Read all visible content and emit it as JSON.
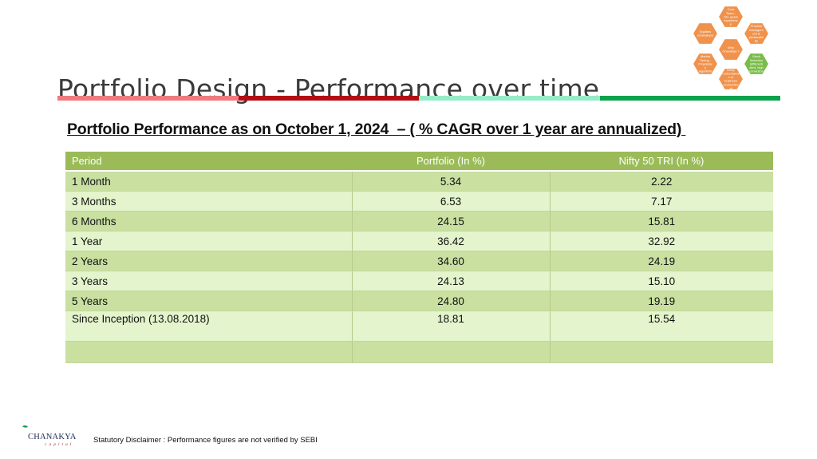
{
  "slide": {
    "title": "Portfolio Design - Performance over time",
    "subtitle": "Portfolio Performance as on October 1, 2024  – ( % CAGR over 1 year are annualized) ",
    "divider_colors": [
      "#ef7b7f",
      "#b40d14",
      "#95ecc8",
      "#0ca24b"
    ]
  },
  "hex_cluster": {
    "colors": {
      "orange": "#f0924c",
      "green": "#79bc49"
    },
    "items": [
      {
        "label_lines": [
          "Core",
          "Team -",
          "15+ years",
          "experienc",
          "e"
        ],
        "color": "orange"
      },
      {
        "label_lines": [
          "Equities",
          "(chanakya)"
        ],
        "color": "orange"
      },
      {
        "label_lines": [
          "Process",
          "managem",
          "ent &",
          "(defensibil",
          "ity"
        ],
        "color": "orange"
      },
      {
        "label_lines": [
          "Why",
          "Chanakya ?"
        ],
        "color": "orange"
      },
      {
        "label_lines": [
          "Market",
          "Timing -",
          "Proprietar",
          "y",
          "algorithm"
        ],
        "color": "orange"
      },
      {
        "label_lines": [
          "Stock",
          "Selection",
          "(differenti",
          "ated, high",
          "conviction"
        ],
        "color": "green"
      },
      {
        "label_lines": [
          "Deep",
          "understandi",
          "n of",
          "business",
          "economics",
          "al"
        ],
        "color": "orange"
      }
    ]
  },
  "table": {
    "headers": [
      "Period",
      "Portfolio (In %)",
      "Nifty 50 TRI (In %)"
    ],
    "rows": [
      {
        "period": "1 Month",
        "portfolio": "5.34",
        "nifty": "2.22"
      },
      {
        "period": "3 Months",
        "portfolio": "6.53",
        "nifty": "7.17"
      },
      {
        "period": "6 Months",
        "portfolio": "24.15",
        "nifty": "15.81"
      },
      {
        "period": "1 Year",
        "portfolio": "36.42",
        "nifty": "32.92"
      },
      {
        "period": "2 Years",
        "portfolio": "34.60",
        "nifty": "24.19"
      },
      {
        "period": "3 Years",
        "portfolio": "24.13",
        "nifty": "15.10"
      },
      {
        "period": "5 Years",
        "portfolio": "24.80",
        "nifty": "19.19"
      },
      {
        "period": "Since Inception (13.08.2018)",
        "portfolio": "18.81",
        "nifty": "15.54"
      },
      {
        "period": "",
        "portfolio": "",
        "nifty": ""
      }
    ]
  },
  "logo": {
    "name": "CHANAKYA",
    "sub": "capital",
    "mark_color": "#b9212c",
    "accent_color": "#1aa04c"
  },
  "footer": {
    "disclaimer": "Statutory Disclaimer : Performance figures are not verified by SEBI"
  }
}
